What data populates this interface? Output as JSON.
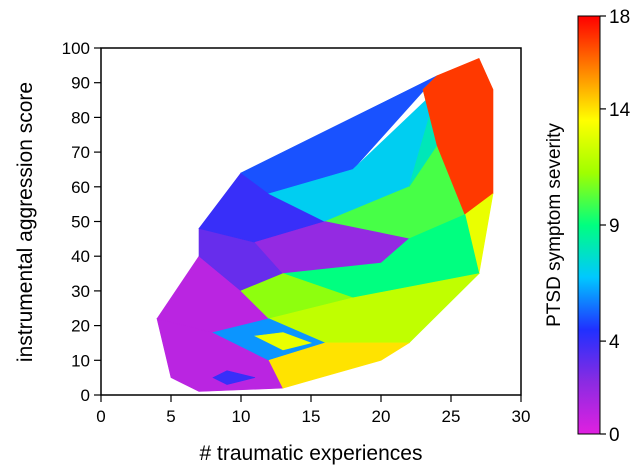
{
  "chart_data": {
    "type": "heatmap",
    "title": "",
    "xlabel": "# traumatic experiences",
    "ylabel": "instrumental aggression score",
    "xlim": [
      0,
      30
    ],
    "ylim": [
      0,
      100
    ],
    "xticks": [
      0,
      5,
      10,
      15,
      20,
      25,
      30
    ],
    "yticks": [
      0,
      10,
      20,
      30,
      40,
      50,
      60,
      70,
      80,
      90,
      100
    ],
    "grid": false,
    "colorbar": {
      "label": "PTSD symptom severity",
      "range": [
        0,
        18
      ],
      "ticks": [
        0,
        4,
        9,
        14,
        18
      ],
      "colors": [
        "#e020e0",
        "#8a2be2",
        "#2030ff",
        "#00c8ff",
        "#00ff80",
        "#a0ff00",
        "#ffff00",
        "#ff8000",
        "#ff0000"
      ]
    },
    "hull": [
      [
        4,
        22
      ],
      [
        5,
        5
      ],
      [
        7,
        1
      ],
      [
        13,
        2
      ],
      [
        20,
        10
      ],
      [
        22,
        15
      ],
      [
        27,
        35
      ],
      [
        28,
        88
      ],
      [
        27,
        97
      ],
      [
        24,
        92
      ],
      [
        10,
        64
      ],
      [
        7,
        48
      ]
    ],
    "regions": [
      {
        "vertices": [
          [
            4,
            22
          ],
          [
            5,
            5
          ],
          [
            7,
            1
          ],
          [
            13,
            2
          ],
          [
            12,
            10
          ],
          [
            8,
            18
          ]
        ],
        "severity": 1
      },
      {
        "vertices": [
          [
            4,
            22
          ],
          [
            8,
            18
          ],
          [
            12,
            22
          ],
          [
            10,
            30
          ],
          [
            7,
            40
          ]
        ],
        "severity": 1
      },
      {
        "vertices": [
          [
            7,
            40
          ],
          [
            10,
            30
          ],
          [
            13,
            35
          ],
          [
            11,
            44
          ],
          [
            7,
            48
          ]
        ],
        "severity": 3
      },
      {
        "vertices": [
          [
            7,
            48
          ],
          [
            11,
            44
          ],
          [
            16,
            50
          ],
          [
            12,
            58
          ],
          [
            10,
            64
          ]
        ],
        "severity": 4
      },
      {
        "vertices": [
          [
            10,
            64
          ],
          [
            12,
            58
          ],
          [
            18,
            65
          ],
          [
            24,
            92
          ]
        ],
        "severity": 5
      },
      {
        "vertices": [
          [
            12,
            58
          ],
          [
            16,
            50
          ],
          [
            22,
            60
          ],
          [
            24,
            88
          ],
          [
            18,
            65
          ]
        ],
        "severity": 7
      },
      {
        "vertices": [
          [
            16,
            50
          ],
          [
            22,
            45
          ],
          [
            26,
            52
          ],
          [
            24,
            72
          ],
          [
            22,
            60
          ]
        ],
        "severity": 10
      },
      {
        "vertices": [
          [
            22,
            60
          ],
          [
            24,
            72
          ],
          [
            23,
            88
          ],
          [
            24,
            92
          ],
          [
            24,
            88
          ]
        ],
        "severity": 8
      },
      {
        "vertices": [
          [
            24,
            72
          ],
          [
            26,
            52
          ],
          [
            28,
            58
          ],
          [
            28,
            88
          ],
          [
            27,
            97
          ],
          [
            24,
            92
          ],
          [
            23,
            88
          ]
        ],
        "severity": 17
      },
      {
        "vertices": [
          [
            26,
            52
          ],
          [
            27,
            35
          ],
          [
            28,
            58
          ]
        ],
        "severity": 13
      },
      {
        "vertices": [
          [
            11,
            44
          ],
          [
            13,
            35
          ],
          [
            20,
            38
          ],
          [
            22,
            45
          ],
          [
            16,
            50
          ]
        ],
        "severity": 2
      },
      {
        "vertices": [
          [
            13,
            35
          ],
          [
            18,
            28
          ],
          [
            27,
            35
          ],
          [
            26,
            52
          ],
          [
            22,
            45
          ],
          [
            20,
            38
          ]
        ],
        "severity": 9
      },
      {
        "vertices": [
          [
            10,
            30
          ],
          [
            12,
            22
          ],
          [
            18,
            28
          ],
          [
            13,
            35
          ]
        ],
        "severity": 11
      },
      {
        "vertices": [
          [
            12,
            22
          ],
          [
            16,
            15
          ],
          [
            22,
            15
          ],
          [
            27,
            35
          ],
          [
            18,
            28
          ]
        ],
        "severity": 12
      },
      {
        "vertices": [
          [
            8,
            18
          ],
          [
            12,
            10
          ],
          [
            16,
            15
          ],
          [
            12,
            22
          ]
        ],
        "severity": 6
      },
      {
        "vertices": [
          [
            12,
            10
          ],
          [
            13,
            2
          ],
          [
            20,
            10
          ],
          [
            22,
            15
          ],
          [
            16,
            15
          ]
        ],
        "severity": 14
      },
      {
        "vertices": [
          [
            11,
            17
          ],
          [
            13,
            13
          ],
          [
            15,
            15
          ],
          [
            13,
            18
          ]
        ],
        "severity": 13
      },
      {
        "vertices": [
          [
            8,
            5
          ],
          [
            9,
            3
          ],
          [
            11,
            5
          ],
          [
            9,
            7
          ]
        ],
        "severity": 4
      }
    ]
  }
}
